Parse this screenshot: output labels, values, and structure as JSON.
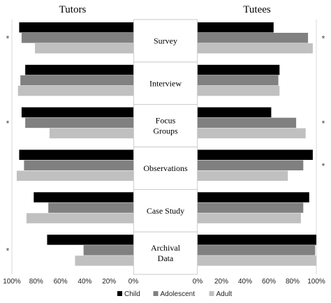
{
  "chart_data": {
    "type": "bar",
    "orientation": "horizontal",
    "panels": [
      {
        "title": "Tutors",
        "direction": "right-to-left",
        "xlim": [
          0,
          100
        ],
        "ticks": [
          "100%",
          "80%",
          "60%",
          "40%",
          "20%",
          "0%"
        ]
      },
      {
        "title": "Tutees",
        "direction": "left-to-right",
        "xlim": [
          0,
          100
        ],
        "ticks": [
          "0%",
          "20%",
          "40%",
          "60%",
          "80%",
          "100%"
        ]
      }
    ],
    "categories": [
      {
        "label": "Survey",
        "lines": [
          "Survey"
        ]
      },
      {
        "label": "Interview",
        "lines": [
          "Interview"
        ]
      },
      {
        "label": "Focus Groups",
        "lines": [
          "Focus",
          "Groups"
        ]
      },
      {
        "label": "Observations",
        "lines": [
          "Observations"
        ]
      },
      {
        "label": "Case Study",
        "lines": [
          "Case Study"
        ]
      },
      {
        "label": "Archival Data",
        "lines": [
          "Archival",
          "Data"
        ]
      }
    ],
    "series": [
      {
        "name": "Child",
        "color": "#000000",
        "tutors": [
          94,
          89,
          92,
          94,
          82,
          71
        ],
        "tutees": [
          64,
          69,
          62,
          97,
          94,
          100
        ]
      },
      {
        "name": "Adolescent",
        "color": "#808080",
        "tutors": [
          92,
          93,
          89,
          90,
          70,
          41
        ],
        "tutees": [
          93,
          68,
          83,
          89,
          89,
          99
        ]
      },
      {
        "name": "Adult",
        "color": "#c0c0c0",
        "tutors": [
          81,
          95,
          69,
          96,
          88,
          48
        ],
        "tutees": [
          97,
          69,
          91,
          76,
          87,
          100
        ]
      }
    ],
    "significance_marker": "*",
    "tutors_significant": [
      true,
      false,
      true,
      false,
      false,
      true
    ],
    "tutees_significant": [
      true,
      false,
      true,
      true,
      false,
      false
    ],
    "legend_position": "bottom-right"
  }
}
